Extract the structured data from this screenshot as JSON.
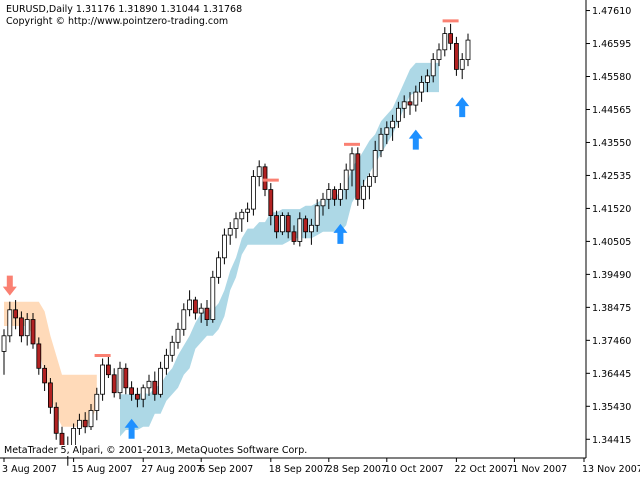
{
  "header": {
    "title": "EURUSD,Daily  1.31176 1.31890 1.31044 1.31768",
    "copyright": "Copyright © http://www.pointzero-trading.com"
  },
  "footer": {
    "text": "MetaTrader 5, Alpari, © 2001-2013, MetaQuotes Software Corp."
  },
  "colors": {
    "background": "#ffffff",
    "bull_body": "#ffffff",
    "bear_body": "#b22222",
    "wick": "#000000",
    "up_band": "#add8e6",
    "down_band": "#ffdab9",
    "up_arrow": "#1e90ff",
    "down_arrow": "#fa8072",
    "top_marker": "#fa8072"
  },
  "chart_data": {
    "type": "candlestick",
    "symbol": "EURUSD",
    "timeframe": "Daily",
    "ylim": [
      1.339,
      1.4775
    ],
    "y_ticks": [
      "1.47610",
      "1.46595",
      "1.45580",
      "1.44565",
      "1.43550",
      "1.42535",
      "1.41520",
      "1.40505",
      "1.39490",
      "1.38475",
      "1.37460",
      "1.36445",
      "1.35430",
      "1.34415"
    ],
    "x_ticks": [
      "3 Aug 2007",
      "15 Aug 2007",
      "27 Aug 2007",
      "6 Sep 2007",
      "18 Sep 2007",
      "28 Sep 2007",
      "10 Oct 2007",
      "22 Oct 2007",
      "1 Nov 2007",
      "13 Nov 2007"
    ],
    "x_tick_index": [
      0,
      12,
      24,
      34,
      46,
      56,
      66,
      78,
      88,
      100
    ],
    "candles": [
      [
        1.3712,
        1.378,
        1.364,
        1.376
      ],
      [
        1.376,
        1.3865,
        1.374,
        1.384
      ],
      [
        1.384,
        1.387,
        1.378,
        1.3815
      ],
      [
        1.3815,
        1.3835,
        1.374,
        1.376
      ],
      [
        1.376,
        1.383,
        1.373,
        1.381
      ],
      [
        1.381,
        1.383,
        1.372,
        1.3735
      ],
      [
        1.3735,
        1.3755,
        1.364,
        1.366
      ],
      [
        1.366,
        1.367,
        1.359,
        1.3615
      ],
      [
        1.3615,
        1.363,
        1.352,
        1.354
      ],
      [
        1.354,
        1.3555,
        1.344,
        1.346
      ],
      [
        1.346,
        1.348,
        1.3395,
        1.342
      ],
      [
        1.342,
        1.345,
        1.336,
        1.3415
      ],
      [
        1.3415,
        1.349,
        1.3395,
        1.3475
      ],
      [
        1.3475,
        1.352,
        1.3455,
        1.35
      ],
      [
        1.35,
        1.3525,
        1.346,
        1.348
      ],
      [
        1.348,
        1.355,
        1.347,
        1.353
      ],
      [
        1.353,
        1.36,
        1.35,
        1.358
      ],
      [
        1.358,
        1.369,
        1.356,
        1.367
      ],
      [
        1.367,
        1.3695,
        1.363,
        1.364
      ],
      [
        1.364,
        1.366,
        1.357,
        1.3585
      ],
      [
        1.3585,
        1.368,
        1.3565,
        1.366
      ],
      [
        1.366,
        1.3675,
        1.358,
        1.36
      ],
      [
        1.36,
        1.362,
        1.356,
        1.358
      ],
      [
        1.358,
        1.36,
        1.354,
        1.3565
      ],
      [
        1.3565,
        1.361,
        1.354,
        1.36
      ],
      [
        1.36,
        1.364,
        1.3575,
        1.362
      ],
      [
        1.362,
        1.365,
        1.356,
        1.358
      ],
      [
        1.358,
        1.368,
        1.357,
        1.366
      ],
      [
        1.366,
        1.372,
        1.364,
        1.37
      ],
      [
        1.37,
        1.376,
        1.368,
        1.374
      ],
      [
        1.374,
        1.38,
        1.372,
        1.378
      ],
      [
        1.378,
        1.386,
        1.376,
        1.384
      ],
      [
        1.384,
        1.39,
        1.382,
        1.387
      ],
      [
        1.387,
        1.388,
        1.381,
        1.383
      ],
      [
        1.383,
        1.386,
        1.38,
        1.3845
      ],
      [
        1.3845,
        1.387,
        1.379,
        1.381
      ],
      [
        1.381,
        1.396,
        1.38,
        1.394
      ],
      [
        1.394,
        1.402,
        1.392,
        1.4
      ],
      [
        1.4,
        1.409,
        1.398,
        1.407
      ],
      [
        1.407,
        1.411,
        1.404,
        1.409
      ],
      [
        1.409,
        1.414,
        1.406,
        1.412
      ],
      [
        1.412,
        1.415,
        1.408,
        1.414
      ],
      [
        1.414,
        1.417,
        1.411,
        1.415
      ],
      [
        1.415,
        1.427,
        1.413,
        1.425
      ],
      [
        1.425,
        1.43,
        1.422,
        1.428
      ],
      [
        1.428,
        1.429,
        1.419,
        1.421
      ],
      [
        1.421,
        1.423,
        1.41,
        1.413
      ],
      [
        1.413,
        1.4145,
        1.406,
        1.408
      ],
      [
        1.408,
        1.414,
        1.407,
        1.413
      ],
      [
        1.413,
        1.414,
        1.406,
        1.408
      ],
      [
        1.408,
        1.41,
        1.404,
        1.405
      ],
      [
        1.405,
        1.414,
        1.4035,
        1.412
      ],
      [
        1.412,
        1.413,
        1.406,
        1.408
      ],
      [
        1.408,
        1.412,
        1.404,
        1.41
      ],
      [
        1.41,
        1.418,
        1.408,
        1.416
      ],
      [
        1.416,
        1.42,
        1.413,
        1.418
      ],
      [
        1.418,
        1.423,
        1.415,
        1.421
      ],
      [
        1.421,
        1.422,
        1.416,
        1.418
      ],
      [
        1.418,
        1.423,
        1.416,
        1.421
      ],
      [
        1.421,
        1.429,
        1.418,
        1.427
      ],
      [
        1.427,
        1.434,
        1.422,
        1.432
      ],
      [
        1.432,
        1.434,
        1.416,
        1.418
      ],
      [
        1.418,
        1.424,
        1.415,
        1.422
      ],
      [
        1.422,
        1.426,
        1.418,
        1.425
      ],
      [
        1.425,
        1.436,
        1.423,
        1.433
      ],
      [
        1.433,
        1.44,
        1.431,
        1.438
      ],
      [
        1.438,
        1.442,
        1.435,
        1.44
      ],
      [
        1.44,
        1.444,
        1.436,
        1.442
      ],
      [
        1.442,
        1.448,
        1.44,
        1.446
      ],
      [
        1.446,
        1.45,
        1.443,
        1.448
      ],
      [
        1.448,
        1.451,
        1.444,
        1.447
      ],
      [
        1.447,
        1.453,
        1.445,
        1.451
      ],
      [
        1.451,
        1.456,
        1.448,
        1.454
      ],
      [
        1.454,
        1.458,
        1.451,
        1.456
      ],
      [
        1.456,
        1.463,
        1.454,
        1.461
      ],
      [
        1.461,
        1.466,
        1.459,
        1.464
      ],
      [
        1.464,
        1.471,
        1.462,
        1.469
      ],
      [
        1.469,
        1.472,
        1.464,
        1.466
      ],
      [
        1.466,
        1.468,
        1.456,
        1.458
      ],
      [
        1.458,
        1.463,
        1.455,
        1.461
      ],
      [
        1.461,
        1.469,
        1.459,
        1.467
      ]
    ],
    "up_band": {
      "start": 20,
      "upper": [
        1.358,
        1.358,
        1.358,
        1.358,
        1.3585,
        1.358,
        1.36,
        1.361,
        1.364,
        1.366,
        1.37,
        1.373,
        1.376,
        1.38,
        1.383,
        1.384,
        1.384,
        1.386,
        1.39,
        1.396,
        1.4,
        1.406,
        1.409,
        1.409,
        1.411,
        1.411,
        1.414,
        1.414,
        1.415,
        1.415,
        1.415,
        1.415,
        1.416,
        1.416,
        1.417,
        1.418,
        1.418,
        1.419,
        1.42,
        1.422,
        1.428,
        1.43,
        1.433,
        1.436,
        1.438,
        1.442,
        1.444,
        1.446,
        1.45,
        1.454,
        1.458,
        1.46,
        1.46,
        1.46,
        1.46,
        1.46
      ],
      "lower": [
        1.345,
        1.347,
        1.347,
        1.347,
        1.348,
        1.348,
        1.352,
        1.352,
        1.356,
        1.358,
        1.36,
        1.364,
        1.366,
        1.372,
        1.374,
        1.376,
        1.376,
        1.378,
        1.382,
        1.39,
        1.394,
        1.401,
        1.404,
        1.404,
        1.404,
        1.404,
        1.404,
        1.404,
        1.404,
        1.405,
        1.406,
        1.406,
        1.406,
        1.406,
        1.407,
        1.408,
        1.408,
        1.408,
        1.408,
        1.41,
        1.417,
        1.42,
        1.423,
        1.426,
        1.429,
        1.432,
        1.435,
        1.438,
        1.442,
        1.446,
        1.45,
        1.451,
        1.451,
        1.451,
        1.451,
        1.451
      ]
    },
    "down_band": {
      "start": 0,
      "upper": [
        1.3865,
        1.3865,
        1.3865,
        1.3865,
        1.3865,
        1.3865,
        1.3865,
        1.3835,
        1.376,
        1.37,
        1.364,
        1.364,
        1.364,
        1.364,
        1.364,
        1.364,
        1.364
      ],
      "lower": [
        1.379,
        1.379,
        1.379,
        1.379,
        1.379,
        1.376,
        1.372,
        1.364,
        1.358,
        1.352,
        1.348,
        1.348,
        1.348,
        1.348,
        1.348,
        1.35,
        1.354
      ]
    },
    "up_arrows": [
      22,
      58,
      71,
      79
    ],
    "down_arrows": [
      1
    ],
    "top_markers": [
      17,
      46,
      60,
      77
    ]
  }
}
